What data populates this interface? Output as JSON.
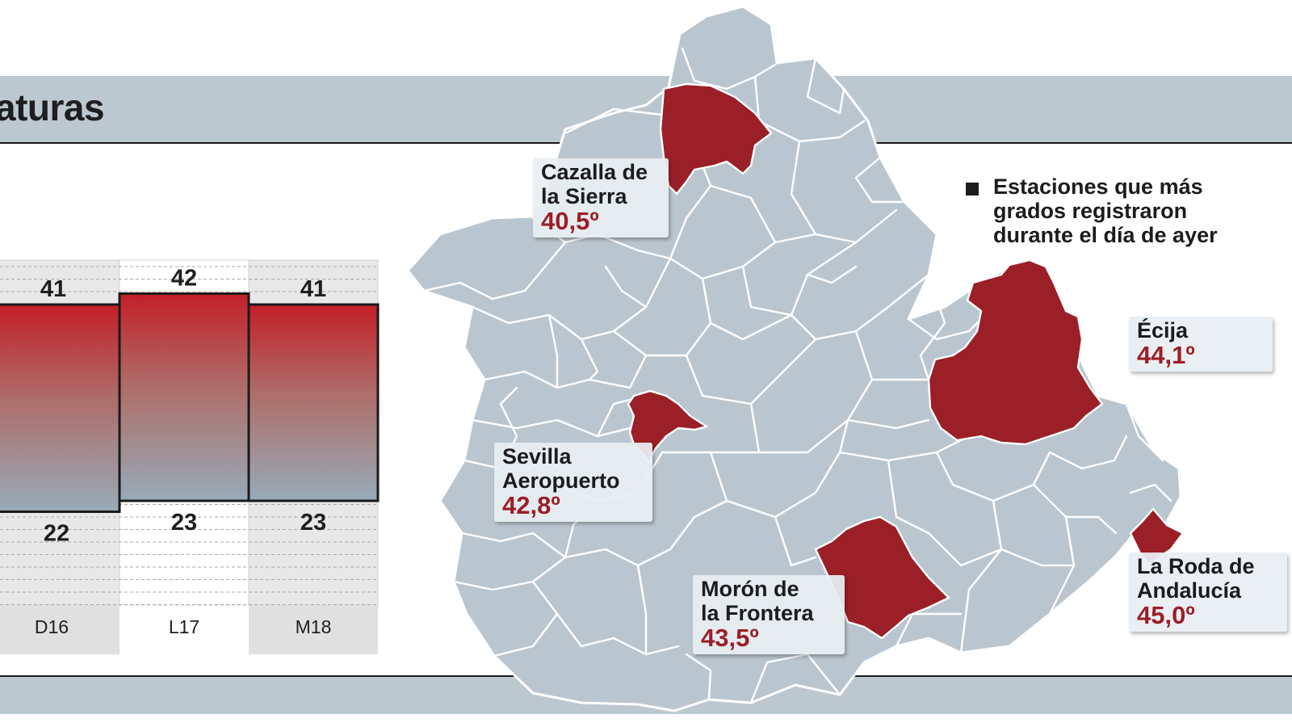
{
  "header": {
    "title": "aturas"
  },
  "chart_data": {
    "type": "bar",
    "categories": [
      "D16",
      "L17",
      "M18"
    ],
    "series": [
      {
        "values": [
          41,
          42,
          41
        ]
      },
      {
        "values": [
          22,
          23,
          23
        ]
      }
    ],
    "ylim": [
      19,
      44
    ]
  },
  "legend": {
    "text": "Estaciones que más\ngrados registraron\ndurante el día de ayer"
  },
  "stations": [
    {
      "name": "Cazalla de\nla Sierra",
      "value": "40,5º"
    },
    {
      "name": "Écija",
      "value": "44,1º"
    },
    {
      "name": "Sevilla\nAeropuerto",
      "value": "42,8º"
    },
    {
      "name": "Morón de\nla Frontera",
      "value": "43,5º"
    },
    {
      "name": "La Roda de\nAndalucía",
      "value": "45,0º"
    }
  ],
  "colors": {
    "highlight": "#9b1f27",
    "land": "#bac6cf",
    "band": "#bcc8d0",
    "bar_top": "#c21f27",
    "bar_bottom": "#97abb8"
  }
}
